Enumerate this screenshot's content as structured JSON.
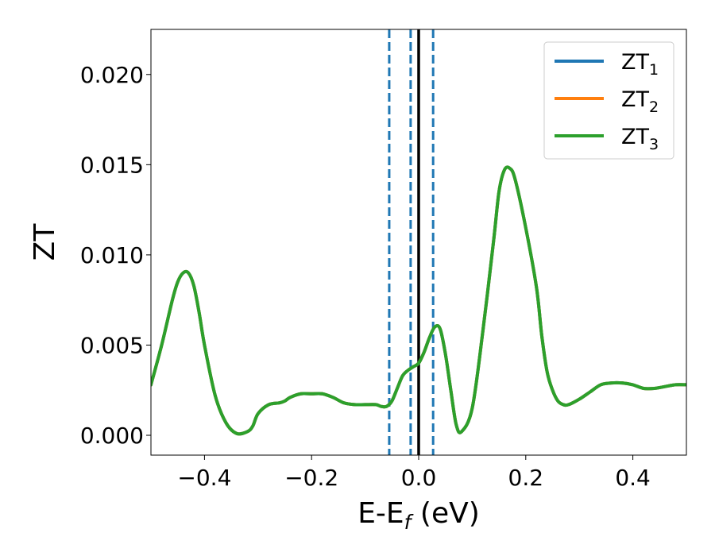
{
  "chart_data": {
    "type": "line",
    "xlabel": {
      "main": "E-E",
      "sub": "f",
      "suffix": " (eV)"
    },
    "ylabel": "ZT",
    "xlim": [
      -0.5,
      0.5
    ],
    "ylim": [
      -0.0011,
      0.0225
    ],
    "xticks": [
      {
        "value": -0.4,
        "label": "−0.4"
      },
      {
        "value": -0.2,
        "label": "−0.2"
      },
      {
        "value": 0.0,
        "label": "0.0"
      },
      {
        "value": 0.2,
        "label": "0.2"
      },
      {
        "value": 0.4,
        "label": "0.4"
      }
    ],
    "yticks": [
      {
        "value": 0.0,
        "label": "0.000"
      },
      {
        "value": 0.005,
        "label": "0.005"
      },
      {
        "value": 0.01,
        "label": "0.010"
      },
      {
        "value": 0.015,
        "label": "0.015"
      },
      {
        "value": 0.02,
        "label": "0.020"
      }
    ],
    "grid": false,
    "legend_position": "top-right",
    "x": [
      -0.5,
      -0.48,
      -0.46,
      -0.45,
      -0.44,
      -0.43,
      -0.42,
      -0.41,
      -0.4,
      -0.38,
      -0.36,
      -0.34,
      -0.32,
      -0.31,
      -0.3,
      -0.28,
      -0.26,
      -0.25,
      -0.24,
      -0.22,
      -0.2,
      -0.18,
      -0.16,
      -0.14,
      -0.12,
      -0.1,
      -0.08,
      -0.07,
      -0.06,
      -0.05,
      -0.04,
      -0.03,
      -0.02,
      -0.01,
      0.0,
      0.01,
      0.02,
      0.03,
      0.04,
      0.05,
      0.06,
      0.07,
      0.08,
      0.1,
      0.12,
      0.14,
      0.15,
      0.16,
      0.17,
      0.18,
      0.2,
      0.22,
      0.23,
      0.24,
      0.25,
      0.26,
      0.27,
      0.28,
      0.3,
      0.32,
      0.34,
      0.36,
      0.38,
      0.4,
      0.42,
      0.44,
      0.46,
      0.48,
      0.5
    ],
    "series": [
      {
        "name": "ZT1",
        "label_main": "ZT",
        "label_sub": "1",
        "color": "#1f77b4",
        "values": [
          0.0028,
          0.005,
          0.0075,
          0.0085,
          0.009,
          0.009,
          0.0083,
          0.0068,
          0.005,
          0.0022,
          0.0007,
          0.0001,
          0.0002,
          0.0005,
          0.0012,
          0.0017,
          0.0018,
          0.0019,
          0.0021,
          0.0023,
          0.0023,
          0.0023,
          0.0021,
          0.0018,
          0.0017,
          0.0017,
          0.0017,
          0.0016,
          0.0016,
          0.0019,
          0.0026,
          0.0033,
          0.0036,
          0.0038,
          0.004,
          0.0046,
          0.0054,
          0.006,
          0.0059,
          0.0045,
          0.0025,
          0.0006,
          0.0002,
          0.0015,
          0.0058,
          0.0108,
          0.0135,
          0.0147,
          0.0148,
          0.0142,
          0.0115,
          0.0082,
          0.0055,
          0.0035,
          0.0025,
          0.0019,
          0.0017,
          0.0017,
          0.002,
          0.0024,
          0.0028,
          0.0029,
          0.0029,
          0.0028,
          0.0026,
          0.0026,
          0.0027,
          0.0028,
          0.0028
        ]
      },
      {
        "name": "ZT2",
        "label_main": "ZT",
        "label_sub": "2",
        "color": "#ff7f0e",
        "values": [
          0.0028,
          0.005,
          0.0075,
          0.0085,
          0.009,
          0.009,
          0.0083,
          0.0068,
          0.005,
          0.0022,
          0.0007,
          0.0001,
          0.0002,
          0.0005,
          0.0012,
          0.0017,
          0.0018,
          0.0019,
          0.0021,
          0.0023,
          0.0023,
          0.0023,
          0.0021,
          0.0018,
          0.0017,
          0.0017,
          0.0017,
          0.0016,
          0.0016,
          0.0019,
          0.0026,
          0.0033,
          0.0036,
          0.0038,
          0.004,
          0.0046,
          0.0054,
          0.006,
          0.0059,
          0.0045,
          0.0025,
          0.0006,
          0.0002,
          0.0015,
          0.0058,
          0.0108,
          0.0135,
          0.0147,
          0.0148,
          0.0142,
          0.0115,
          0.0082,
          0.0055,
          0.0035,
          0.0025,
          0.0019,
          0.0017,
          0.0017,
          0.002,
          0.0024,
          0.0028,
          0.0029,
          0.0029,
          0.0028,
          0.0026,
          0.0026,
          0.0027,
          0.0028,
          0.0028
        ]
      },
      {
        "name": "ZT3",
        "label_main": "ZT",
        "label_sub": "3",
        "color": "#2ca02c",
        "values": [
          0.0028,
          0.005,
          0.0075,
          0.0085,
          0.009,
          0.009,
          0.0083,
          0.0068,
          0.005,
          0.0022,
          0.0007,
          0.0001,
          0.0002,
          0.0005,
          0.0012,
          0.0017,
          0.0018,
          0.0019,
          0.0021,
          0.0023,
          0.0023,
          0.0023,
          0.0021,
          0.0018,
          0.0017,
          0.0017,
          0.0017,
          0.0016,
          0.0016,
          0.0019,
          0.0026,
          0.0033,
          0.0036,
          0.0038,
          0.004,
          0.0046,
          0.0054,
          0.006,
          0.0059,
          0.0045,
          0.0025,
          0.0006,
          0.0002,
          0.0015,
          0.0058,
          0.0108,
          0.0135,
          0.0147,
          0.0148,
          0.0142,
          0.0115,
          0.0082,
          0.0055,
          0.0035,
          0.0025,
          0.0019,
          0.0017,
          0.0017,
          0.002,
          0.0024,
          0.0028,
          0.0029,
          0.0029,
          0.0028,
          0.0026,
          0.0026,
          0.0027,
          0.0028,
          0.0028
        ]
      }
    ],
    "vlines": [
      {
        "x": -0.055,
        "style": "dashed",
        "color": "#1f77b4"
      },
      {
        "x": -0.015,
        "style": "dashed",
        "color": "#1f77b4"
      },
      {
        "x": 0.0,
        "style": "solid",
        "color": "#000000"
      },
      {
        "x": 0.027,
        "style": "dashed",
        "color": "#1f77b4"
      }
    ]
  }
}
